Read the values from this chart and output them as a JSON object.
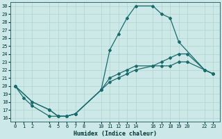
{
  "xlabel": "Humidex (Indice chaleur)",
  "bg_color": "#cce8e8",
  "grid_color": "#b0d4cc",
  "line_color": "#1a6b6b",
  "spine_color": "#336666",
  "tick_color": "#003333",
  "xlim": [
    -0.5,
    23.8
  ],
  "ylim": [
    15.5,
    30.5
  ],
  "xticks": [
    0,
    1,
    2,
    4,
    5,
    6,
    7,
    8,
    10,
    11,
    12,
    13,
    14,
    16,
    17,
    18,
    19,
    20,
    22,
    23
  ],
  "yticks": [
    16,
    17,
    18,
    19,
    20,
    21,
    22,
    23,
    24,
    25,
    26,
    27,
    28,
    29,
    30
  ],
  "line1_x": [
    0,
    1,
    2,
    4,
    5,
    6,
    7,
    10,
    11,
    12,
    13,
    14,
    16,
    17,
    18,
    19,
    22,
    23
  ],
  "line1_y": [
    20,
    18.5,
    17.5,
    16.2,
    16.2,
    16.2,
    16.5,
    19.5,
    24.5,
    26.5,
    28.5,
    30,
    30,
    29,
    28.5,
    25.5,
    22,
    21.5
  ],
  "line2_x": [
    0,
    2,
    4,
    5,
    6,
    7,
    10,
    11,
    12,
    13,
    14,
    16,
    17,
    18,
    19,
    20,
    22,
    23
  ],
  "line2_y": [
    20,
    18,
    17,
    16.2,
    16.2,
    16.5,
    19.5,
    21,
    21.5,
    22,
    22.5,
    22.5,
    23,
    23.5,
    24,
    24,
    22,
    21.5
  ],
  "line3_x": [
    0,
    2,
    4,
    5,
    6,
    7,
    10,
    11,
    12,
    13,
    14,
    16,
    17,
    18,
    19,
    20,
    22,
    23
  ],
  "line3_y": [
    20,
    18,
    17,
    16.2,
    16.2,
    16.5,
    19.5,
    20.5,
    21,
    21.5,
    22,
    22.5,
    22.5,
    22.5,
    23,
    23,
    22,
    21.5
  ]
}
